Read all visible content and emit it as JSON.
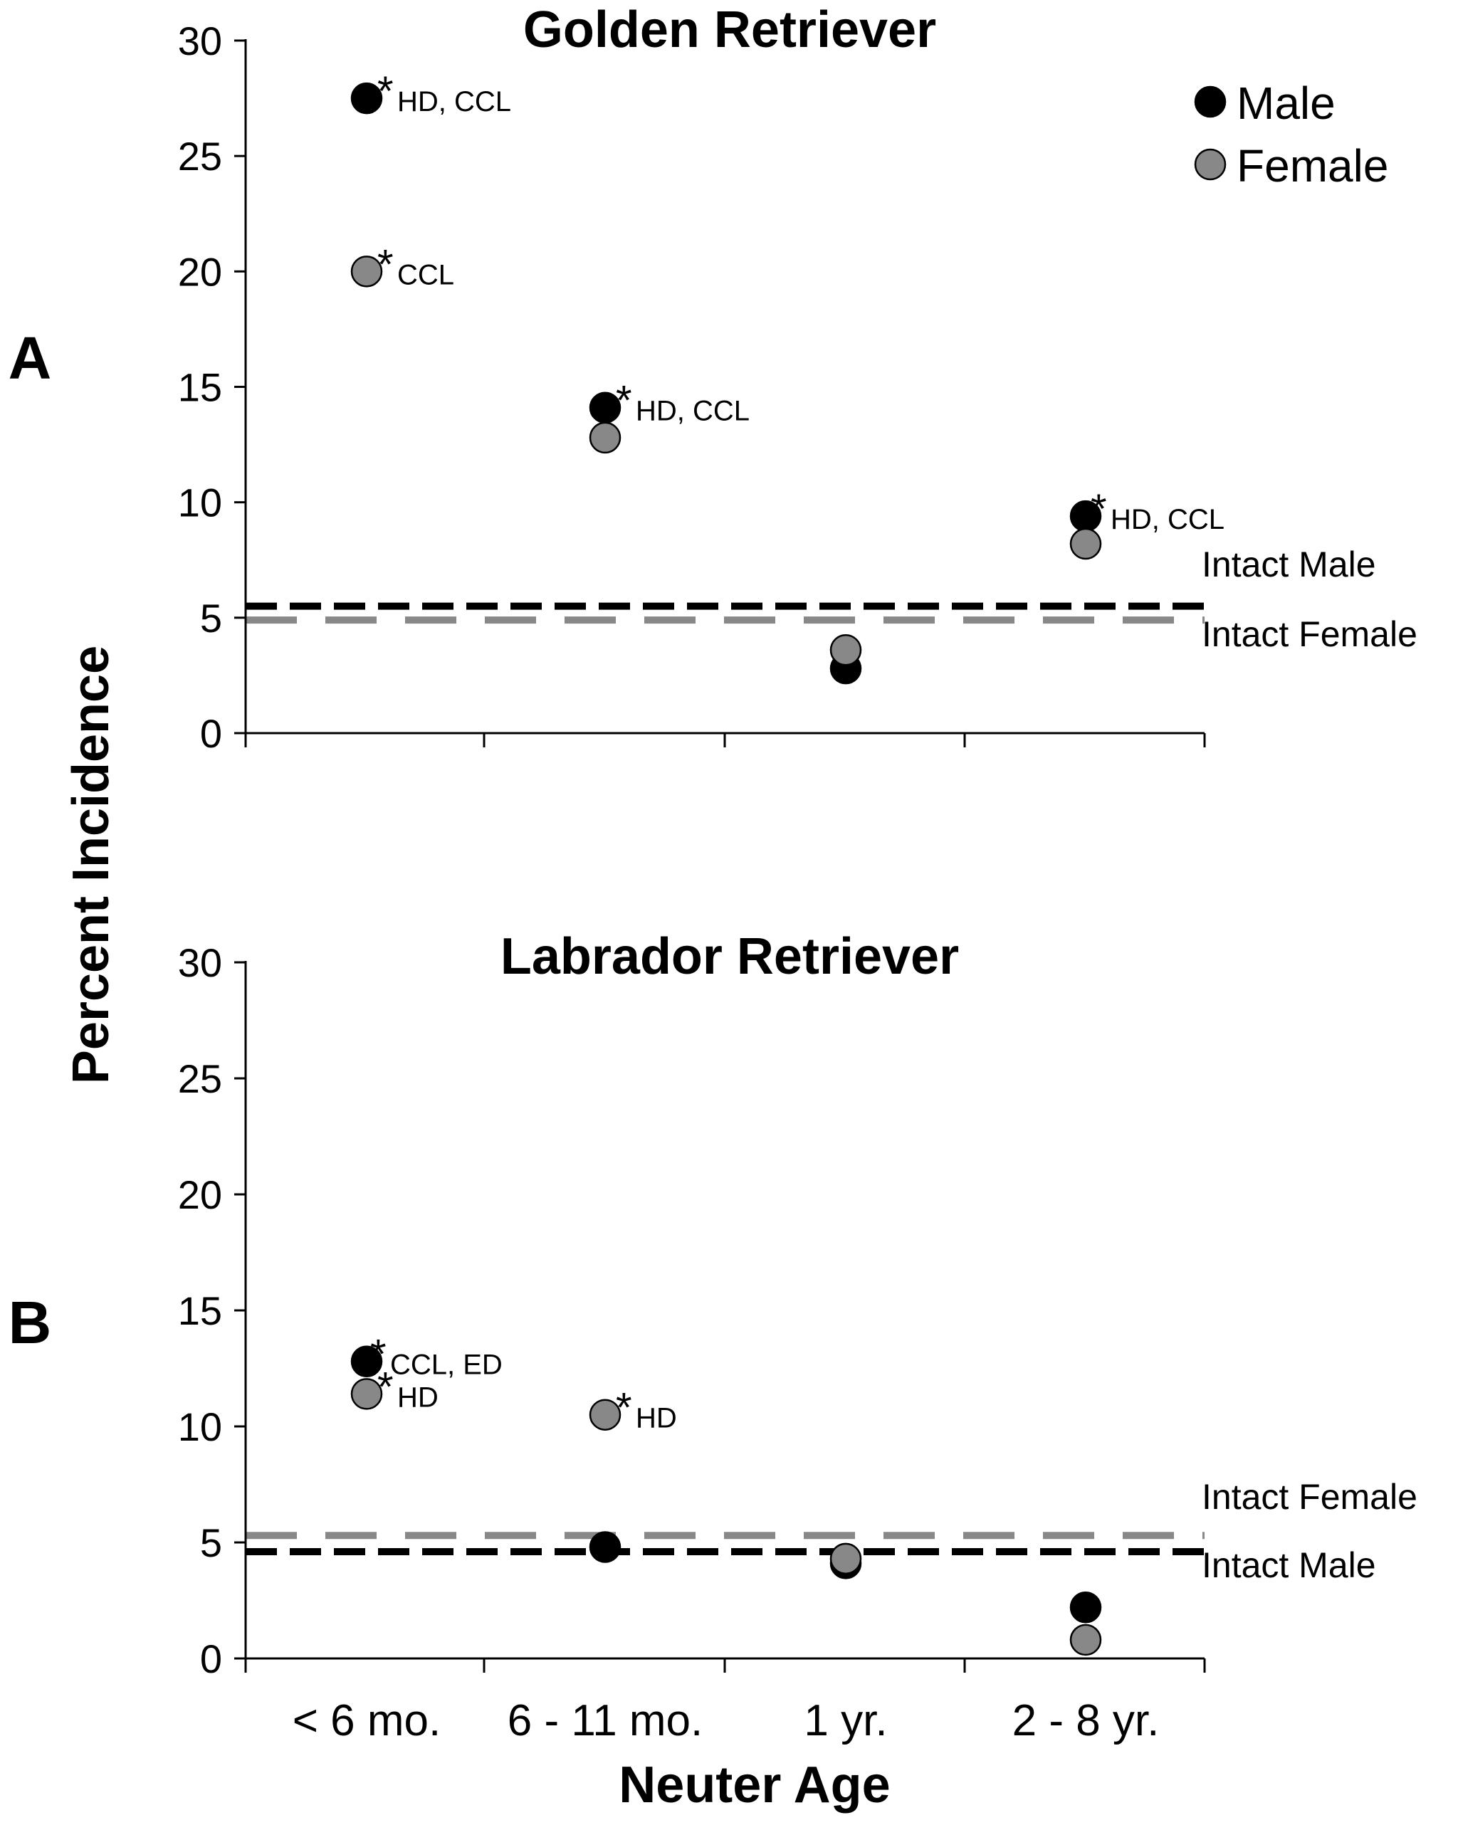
{
  "ylabel": "Percent Incidence",
  "xlabel": "Neuter Age",
  "categories": [
    "< 6 mo.",
    "6 - 11 mo.",
    "1 yr.",
    "2 - 8 yr."
  ],
  "legend": [
    {
      "label": "Male",
      "color": "#000000"
    },
    {
      "label": "Female",
      "color": "#888888"
    }
  ],
  "colors": {
    "male": "#000000",
    "female": "#888888",
    "axis": "#000000"
  },
  "chart_data": [
    {
      "type": "scatter",
      "panel": "A",
      "title": "Golden Retriever",
      "categories": [
        "< 6 mo.",
        "6 - 11 mo.",
        "1 yr.",
        "2 - 8 yr."
      ],
      "ylim": [
        0,
        30
      ],
      "yticks": [
        0,
        5,
        10,
        15,
        20,
        25,
        30
      ],
      "grid": false,
      "legend_position": "top-right",
      "series": [
        {
          "name": "Male",
          "color": "#000000",
          "values": [
            27.5,
            14.1,
            2.8,
            9.4
          ],
          "annotations": [
            "HD, CCL",
            "HD, CCL",
            "",
            "HD, CCL"
          ]
        },
        {
          "name": "Female",
          "color": "#888888",
          "values": [
            20.0,
            12.8,
            3.6,
            8.2
          ],
          "annotations": [
            "CCL",
            "",
            "",
            ""
          ]
        }
      ],
      "reference_lines": [
        {
          "label": "Intact Male",
          "value": 5.5,
          "color": "#000000"
        },
        {
          "label": "Intact Female",
          "value": 4.9,
          "color": "#888888"
        }
      ]
    },
    {
      "type": "scatter",
      "panel": "B",
      "title": "Labrador Retriever",
      "categories": [
        "< 6 mo.",
        "6 - 11 mo.",
        "1 yr.",
        "2 - 8 yr."
      ],
      "ylim": [
        0,
        30
      ],
      "yticks": [
        0,
        5,
        10,
        15,
        20,
        25,
        30
      ],
      "grid": false,
      "series": [
        {
          "name": "Male",
          "color": "#000000",
          "values": [
            12.8,
            4.8,
            4.1,
            2.2
          ],
          "annotations": [
            "CCL, ED",
            "",
            "",
            ""
          ]
        },
        {
          "name": "Female",
          "color": "#888888",
          "values": [
            11.4,
            10.5,
            4.3,
            0.8
          ],
          "annotations": [
            "HD",
            "HD",
            "",
            ""
          ]
        }
      ],
      "reference_lines": [
        {
          "label": "Intact Female",
          "value": 5.3,
          "color": "#888888"
        },
        {
          "label": "Intact Male",
          "value": 4.6,
          "color": "#000000"
        }
      ]
    }
  ]
}
